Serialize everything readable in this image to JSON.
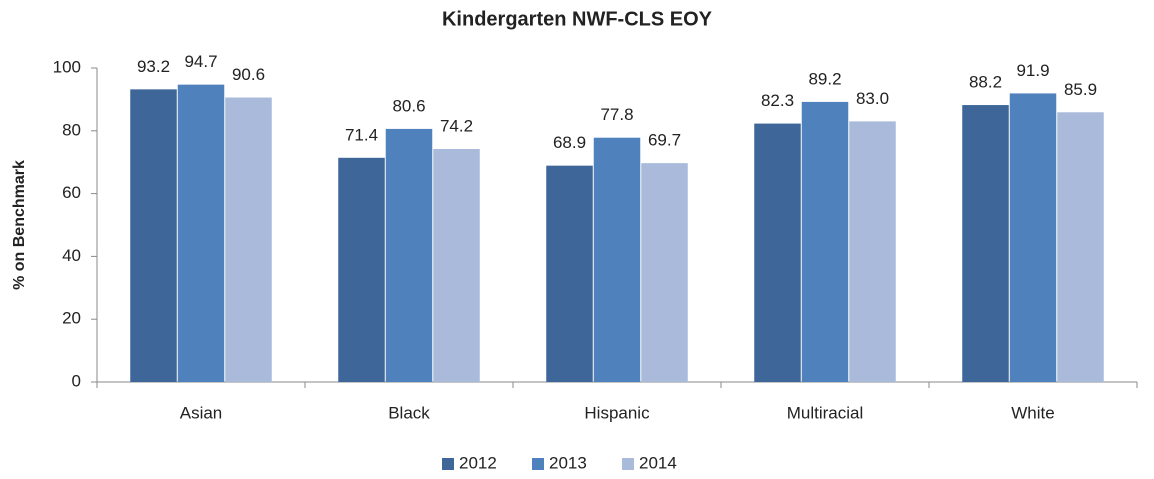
{
  "chart_data": {
    "type": "bar",
    "title": "Kindergarten NWF-CLS EOY",
    "y_label": "% on Benchmark",
    "categories": [
      "Asian",
      "Black",
      "Hispanic",
      "Multiracial",
      "White"
    ],
    "series": [
      {
        "name": "2012",
        "color": "#3f6698",
        "values": [
          93.2,
          71.4,
          68.9,
          82.3,
          88.2
        ],
        "value_labels": [
          "93.2",
          "71.4",
          "68.9",
          "82.3",
          "88.2"
        ]
      },
      {
        "name": "2013",
        "color": "#4f81bd",
        "values": [
          94.7,
          80.6,
          77.8,
          89.2,
          91.9
        ],
        "value_labels": [
          "94.7",
          "80.6",
          "77.8",
          "89.2",
          "91.9"
        ]
      },
      {
        "name": "2014",
        "color": "#a9badb",
        "values": [
          90.6,
          74.2,
          69.7,
          83.0,
          85.9
        ],
        "value_labels": [
          "90.6",
          "74.2",
          "69.7",
          "83.0",
          "85.9"
        ]
      }
    ],
    "ylim": [
      0,
      100
    ],
    "yticks": [
      0,
      20,
      40,
      60,
      80,
      100
    ],
    "grid": false,
    "legend": "bottom"
  }
}
